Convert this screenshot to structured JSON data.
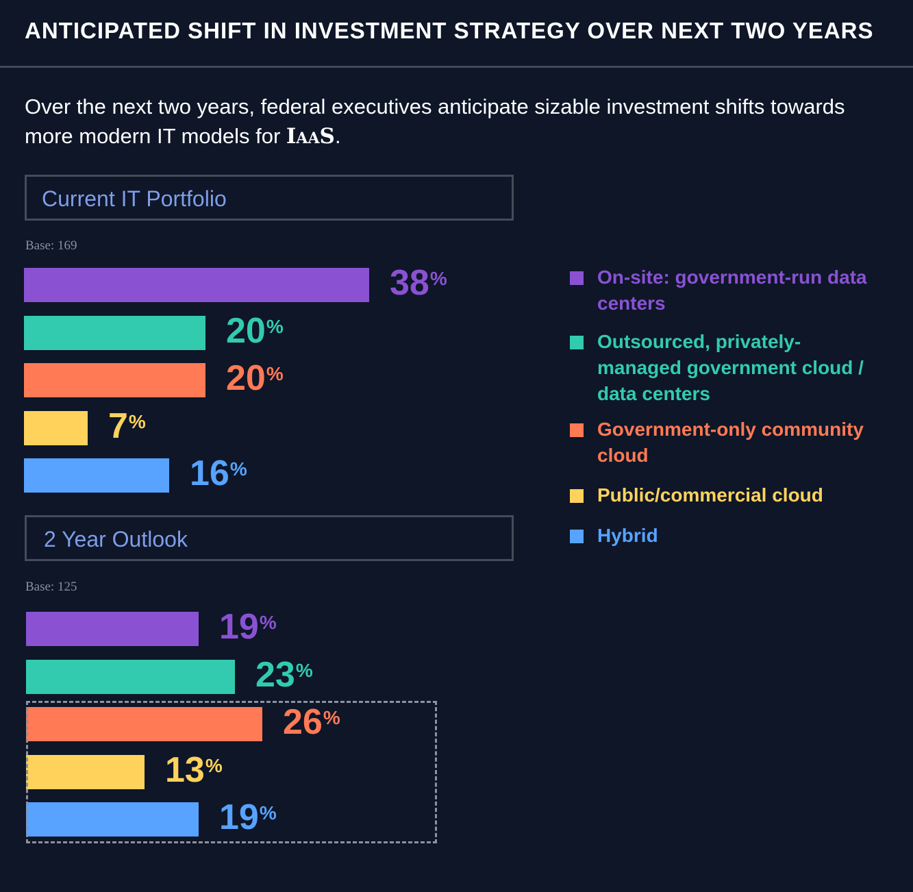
{
  "header": {
    "title": "ANTICIPATED SHIFT IN INVESTMENT STRATEGY OVER NEXT TWO YEARS",
    "subtitle_prefix": "Over the next two years, federal executives anticipate sizable investment shifts towards more modern IT models for ",
    "subtitle_emph": "IaaS",
    "subtitle_suffix": "."
  },
  "colors": {
    "on_site": "#8a52d3",
    "outsourced": "#33cbb0",
    "community": "#ff7a55",
    "public": "#ffd25c",
    "hybrid": "#57a3ff"
  },
  "legend": [
    {
      "label": "On-site: government-run data centers",
      "color": "#8a52d3"
    },
    {
      "label": "Outsourced, privately-managed government cloud / data centers",
      "color": "#33cbb0"
    },
    {
      "label": "Government-only community cloud",
      "color": "#ff7a55"
    },
    {
      "label": "Public/commercial cloud",
      "color": "#ffd25c"
    },
    {
      "label": "Hybrid",
      "color": "#57a3ff"
    }
  ],
  "chart_data": [
    {
      "type": "bar",
      "orientation": "horizontal",
      "title": "Current IT Portfolio",
      "base": "Base: 169",
      "categories": [
        "On-site: government-run data centers",
        "Outsourced, privately-managed government cloud / data centers",
        "Government-only community cloud",
        "Public/commercial cloud",
        "Hybrid"
      ],
      "values": [
        38,
        20,
        20,
        7,
        16
      ],
      "unit": "%"
    },
    {
      "type": "bar",
      "orientation": "horizontal",
      "title": "2 Year Outlook",
      "base": "Base: 125",
      "categories": [
        "On-site: government-run data centers",
        "Outsourced, privately-managed government cloud / data centers",
        "Government-only community cloud",
        "Public/commercial cloud",
        "Hybrid"
      ],
      "values": [
        19,
        23,
        26,
        13,
        19
      ],
      "unit": "%",
      "highlighted_categories": [
        "Government-only community cloud",
        "Public/commercial cloud",
        "Hybrid"
      ]
    }
  ]
}
